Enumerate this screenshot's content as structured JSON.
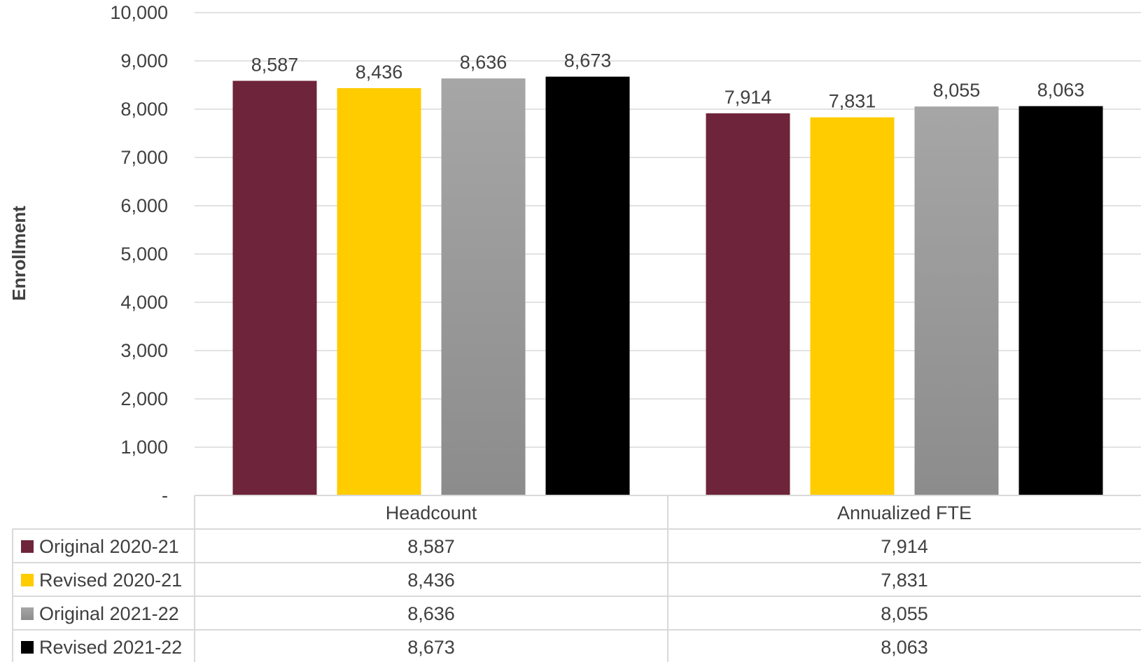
{
  "chart_data": {
    "type": "bar",
    "categories": [
      "Headcount",
      "Annualized FTE"
    ],
    "series": [
      {
        "name": "Original 2020-21",
        "values": [
          8587,
          7914
        ],
        "labels": [
          "8,587",
          "7,914"
        ],
        "color": "#6e243a"
      },
      {
        "name": "Revised 2020-21",
        "values": [
          8436,
          7831
        ],
        "labels": [
          "8,436",
          "7,831"
        ],
        "color": "#ffcc00"
      },
      {
        "name": "Original 2021-22",
        "values": [
          8636,
          8055
        ],
        "labels": [
          "8,636",
          "8,055"
        ],
        "color": "#a6a6a6",
        "gradient_end": "#8c8c8c"
      },
      {
        "name": "Revised 2021-22",
        "values": [
          8673,
          8063
        ],
        "labels": [
          "8,673",
          "8,063"
        ],
        "color": "#000000"
      }
    ],
    "ylabel": "Enrollment",
    "xlabel": "",
    "ylim": [
      0,
      10000
    ],
    "yticks": [
      0,
      1000,
      2000,
      3000,
      4000,
      5000,
      6000,
      7000,
      8000,
      9000,
      10000
    ],
    "ytick_labels": [
      "-",
      "1,000",
      "2,000",
      "3,000",
      "4,000",
      "5,000",
      "6,000",
      "7,000",
      "8,000",
      "9,000",
      "10,000"
    ],
    "grid": true,
    "legend": "data-table-below",
    "data_table": true
  },
  "colors": {
    "text": "#404040",
    "grid": "#d9d9d9",
    "table_border": "#d9d9d9"
  }
}
